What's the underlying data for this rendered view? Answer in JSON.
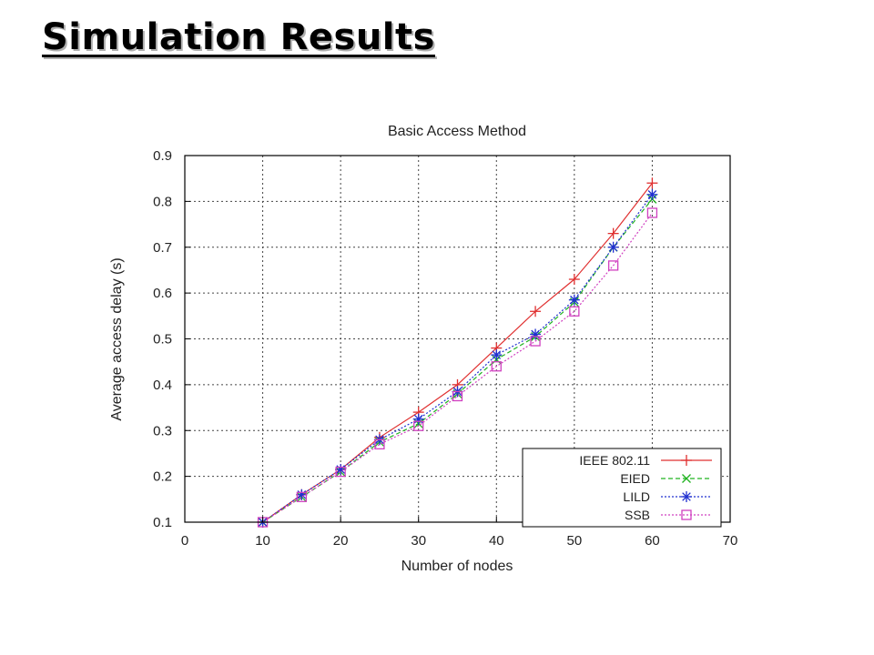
{
  "slide": {
    "title": "Simulation Results"
  },
  "chart_data": {
    "type": "line",
    "title": "Basic Access Method",
    "xlabel": "Number of nodes",
    "ylabel": "Average access delay (s)",
    "xlim": [
      0,
      70
    ],
    "ylim": [
      0.1,
      0.9
    ],
    "xticks": [
      0,
      10,
      20,
      30,
      40,
      50,
      60,
      70
    ],
    "yticks": [
      0.1,
      0.2,
      0.3,
      0.4,
      0.5,
      0.6,
      0.7,
      0.8,
      0.9
    ],
    "grid": true,
    "legend_position": "bottom-right",
    "x": [
      10,
      15,
      20,
      25,
      30,
      35,
      40,
      45,
      50,
      55,
      60
    ],
    "series": [
      {
        "name": "IEEE 802.11",
        "color": "#e03030",
        "marker": "plus",
        "dash": "solid",
        "values": [
          0.1,
          0.16,
          0.215,
          0.285,
          0.34,
          0.4,
          0.48,
          0.56,
          0.63,
          0.73,
          0.84
        ]
      },
      {
        "name": "EIED",
        "color": "#22b322",
        "marker": "cross",
        "dash": "dashed",
        "values": [
          0.1,
          0.155,
          0.21,
          0.275,
          0.315,
          0.38,
          0.455,
          0.505,
          0.58,
          0.7,
          0.805
        ]
      },
      {
        "name": "LILD",
        "color": "#2030d0",
        "marker": "star",
        "dash": "dotted",
        "values": [
          0.1,
          0.16,
          0.215,
          0.28,
          0.325,
          0.385,
          0.465,
          0.51,
          0.585,
          0.7,
          0.815
        ]
      },
      {
        "name": "SSB",
        "color": "#d040c0",
        "marker": "square",
        "dash": "dotted",
        "values": [
          0.1,
          0.155,
          0.21,
          0.27,
          0.31,
          0.375,
          0.44,
          0.495,
          0.56,
          0.66,
          0.775
        ]
      }
    ]
  }
}
